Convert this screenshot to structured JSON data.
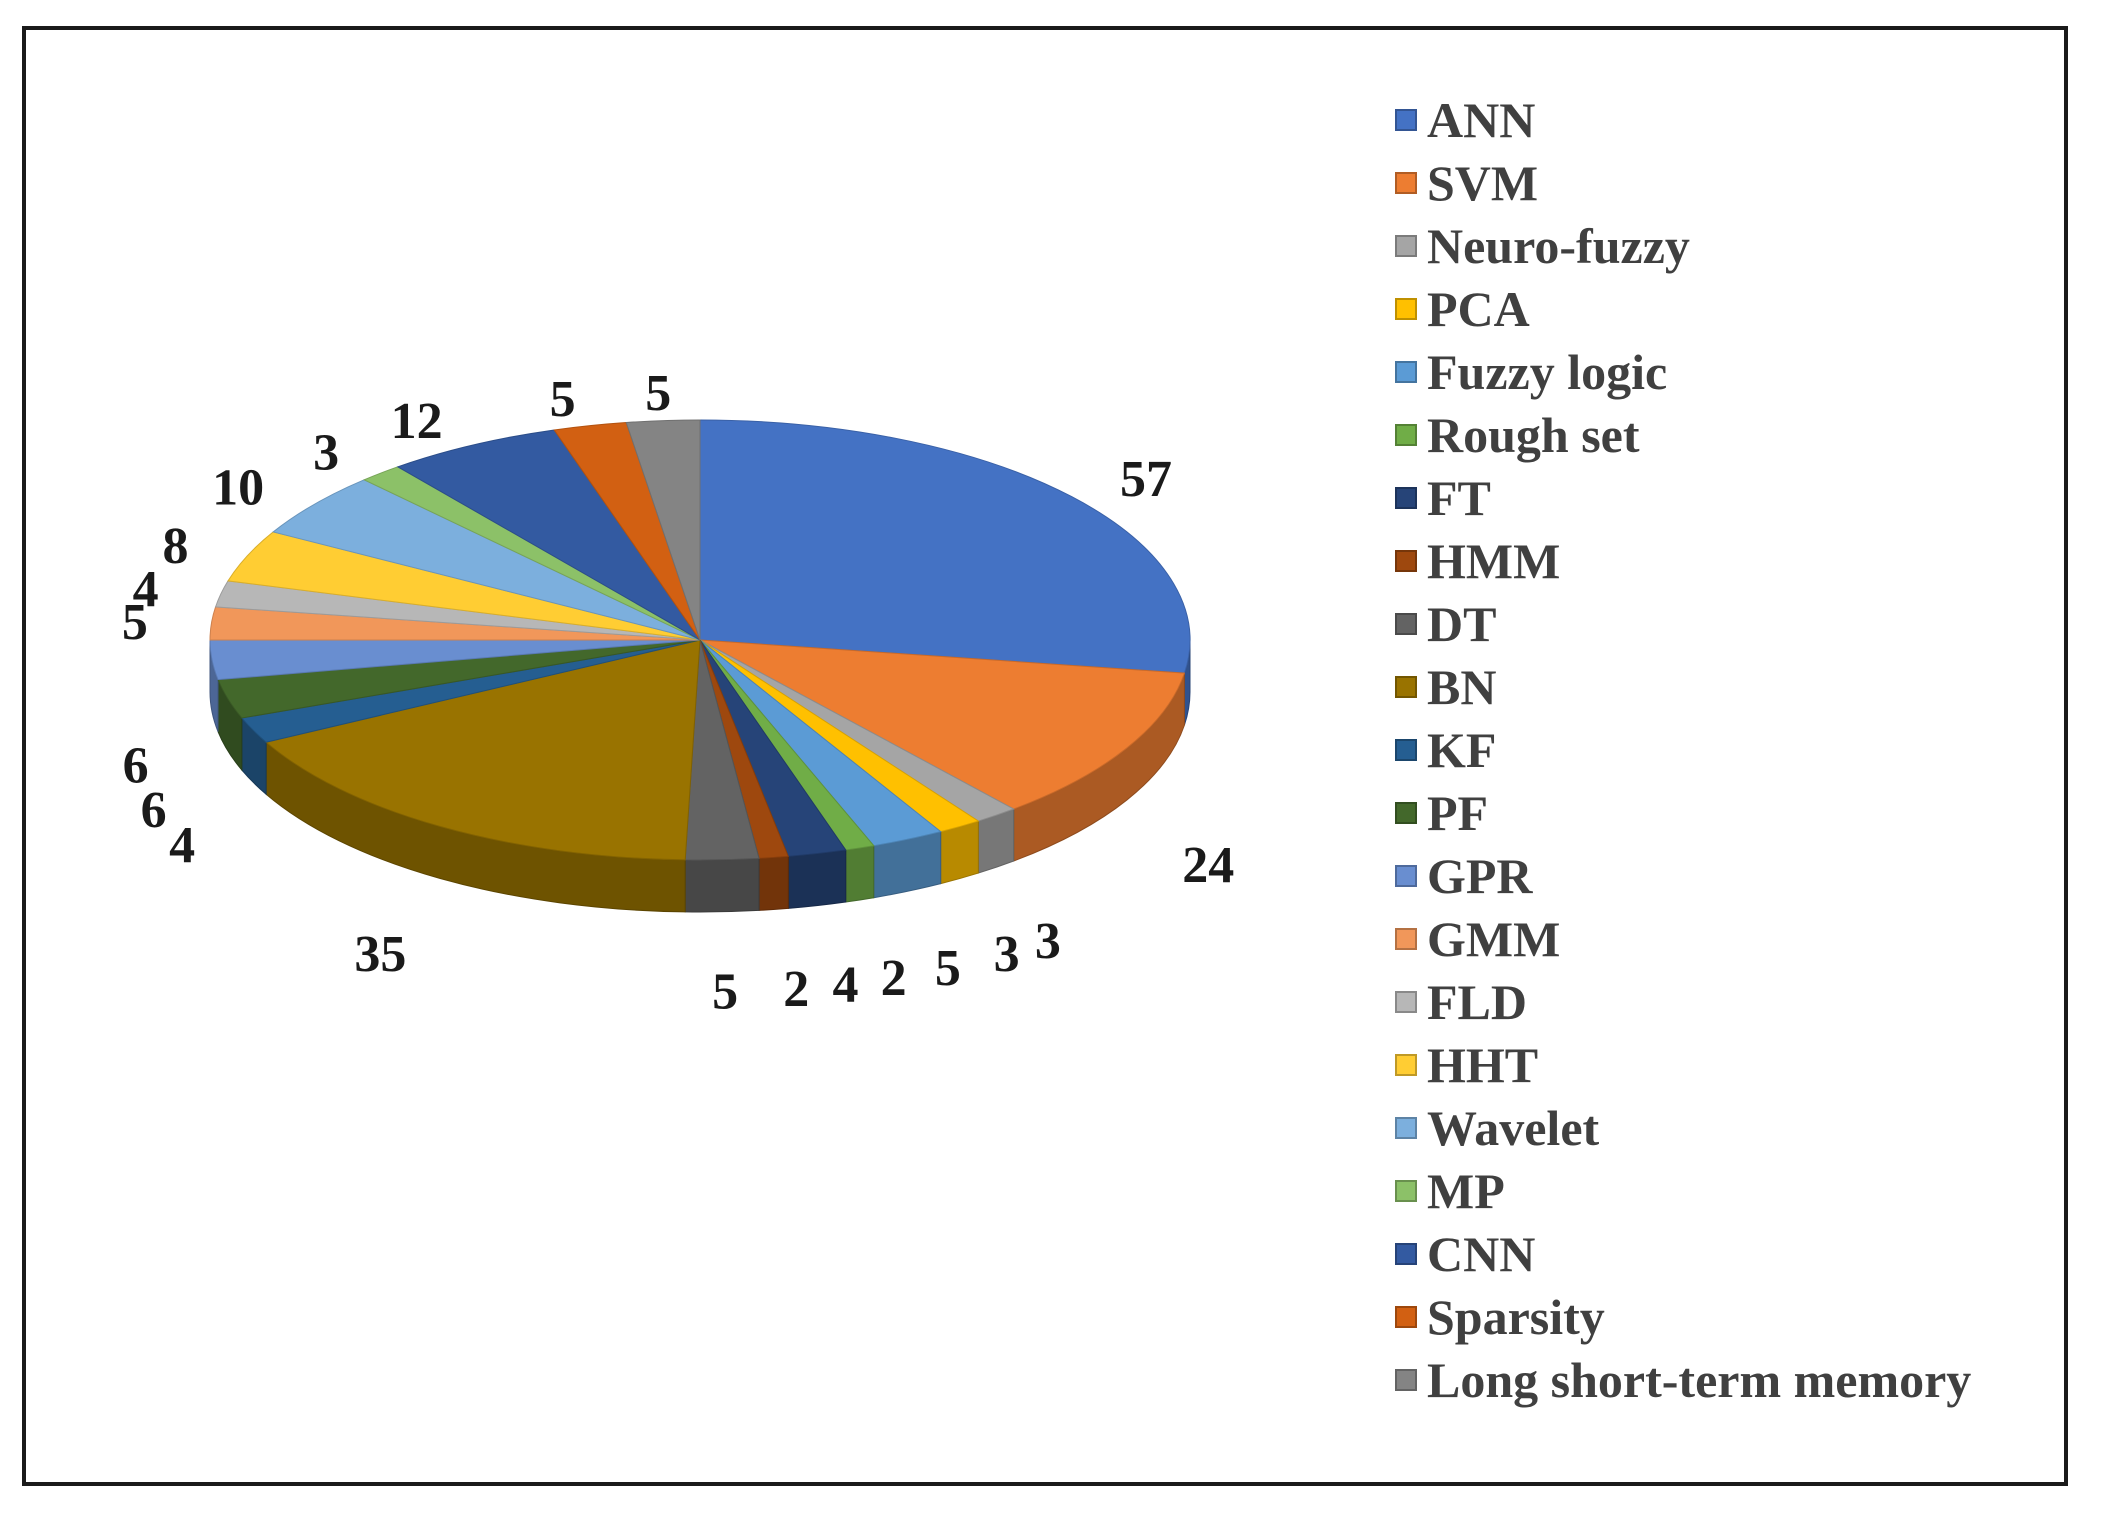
{
  "chart_data": {
    "type": "pie",
    "style": "3d",
    "title": "",
    "legend_position": "right",
    "series": [
      {
        "name": "ANN",
        "value": 57,
        "color": "#4472C4"
      },
      {
        "name": "SVM",
        "value": 24,
        "color": "#ED7D31"
      },
      {
        "name": "Neuro-fuzzy",
        "value": 3,
        "color": "#A5A5A5"
      },
      {
        "name": "PCA",
        "value": 3,
        "color": "#FFC000"
      },
      {
        "name": "Fuzzy logic",
        "value": 5,
        "color": "#5B9BD5"
      },
      {
        "name": "Rough set",
        "value": 2,
        "color": "#70AD47"
      },
      {
        "name": "FT",
        "value": 4,
        "color": "#264478"
      },
      {
        "name": "HMM",
        "value": 2,
        "color": "#9E480E"
      },
      {
        "name": "DT",
        "value": 5,
        "color": "#636363"
      },
      {
        "name": "BN",
        "value": 35,
        "color": "#997300"
      },
      {
        "name": "KF",
        "value": 4,
        "color": "#255E91"
      },
      {
        "name": "PF",
        "value": 6,
        "color": "#43682B"
      },
      {
        "name": "GPR",
        "value": 6,
        "color": "#698ED0"
      },
      {
        "name": "GMM",
        "value": 5,
        "color": "#F1975A"
      },
      {
        "name": "FLD",
        "value": 4,
        "color": "#B7B7B7"
      },
      {
        "name": "HHT",
        "value": 8,
        "color": "#FFCD33"
      },
      {
        "name": "Wavelet",
        "value": 10,
        "color": "#7CAFDD"
      },
      {
        "name": "MP",
        "value": 3,
        "color": "#8CC168"
      },
      {
        "name": "CNN",
        "value": 12,
        "color": "#335AA1"
      },
      {
        "name": "Sparsity",
        "value": 5,
        "color": "#D26012"
      },
      {
        "name": "Long short-term memory",
        "value": 5,
        "color": "#848484"
      }
    ]
  }
}
